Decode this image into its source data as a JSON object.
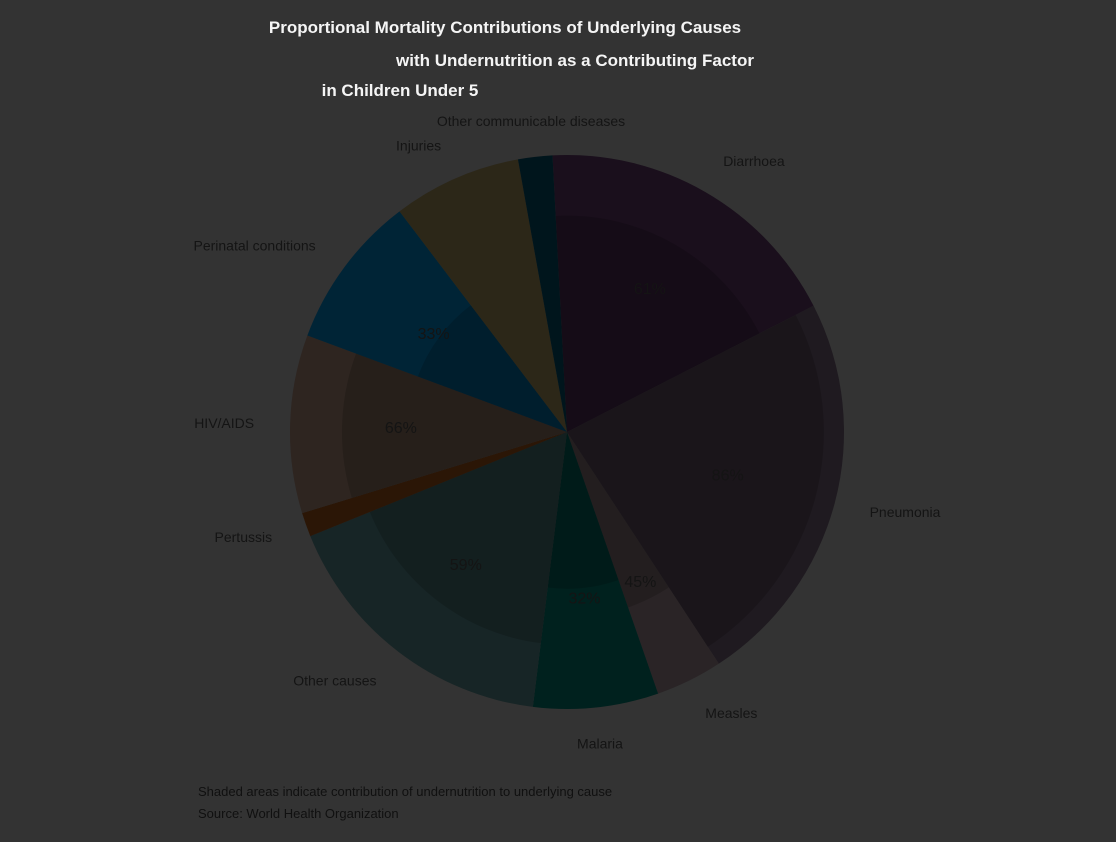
{
  "chart_data": {
    "type": "pie",
    "title_lines": [
      "Proportional Mortality Contributions of Underlying Causes",
      "with Undernutrition as a Contributing Factor",
      "in Children Under 5"
    ],
    "title_suffix": "",
    "categories": [
      "Diarrhoea",
      "Pneumonia",
      "Measles",
      "Malaria",
      "Other causes",
      "Pertussis",
      "HIV/AIDS",
      "Perinatal conditions",
      "Injuries",
      "Other communicable diseases"
    ],
    "slice_values": [
      18.3,
      23.3,
      3.9,
      7.3,
      16.9,
      1.4,
      10.4,
      9.0,
      7.5,
      2.0
    ],
    "inner_percentages": [
      "61%",
      "86%",
      "45%",
      "32%",
      "59%",
      "",
      "66%",
      "33%",
      "",
      ""
    ],
    "footnote_lines": [
      "Shaded areas indicate contribution of undernutrition to underlying cause",
      "Source: World Health Organization"
    ],
    "colors": {
      "background": "#333333",
      "slices": [
        "#1a0f1c",
        "#1f1a20",
        "#2a2426",
        "#00211e",
        "#172526",
        "#2b1606",
        "#2e2520",
        "#002436",
        "#2c2718",
        "#00151c",
        "#2f2410"
      ]
    },
    "legend": "none",
    "grid": false
  }
}
